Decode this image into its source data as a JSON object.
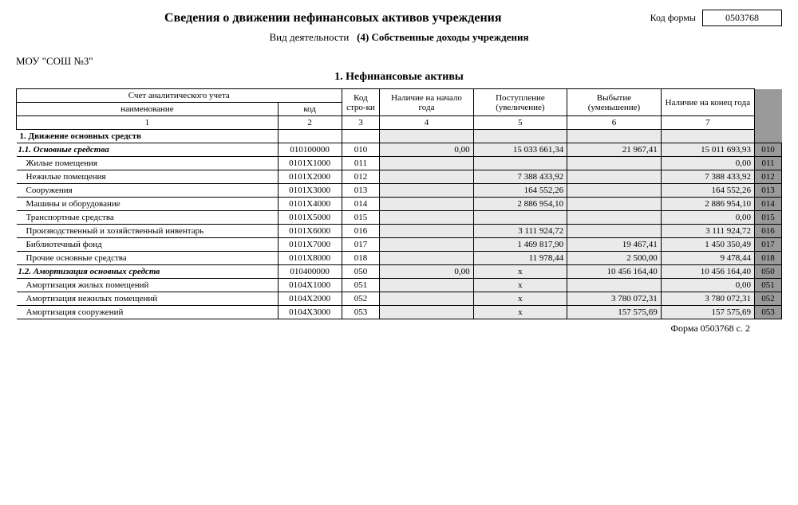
{
  "header": {
    "title": "Сведения о движении нефинансовых активов учреждения",
    "code_form_label": "Код формы",
    "code_form_value": "0503768",
    "activity_label": "Вид деятельности",
    "activity_value": "(4) Собственные доходы учреждения",
    "org": "МОУ \"СОШ №3\"",
    "section": "1. Нефинансовые активы"
  },
  "columns": {
    "account_group": "Счет аналитического учета",
    "name": "наименование",
    "code": "код",
    "line": "Код стро-ки",
    "begin": "Наличие на начало года",
    "inflow": "Поступление (увеличение)",
    "outflow": "Выбытие (уменьшение)",
    "end": "Наличие на конец года",
    "nums": [
      "1",
      "2",
      "3",
      "4",
      "5",
      "6",
      "7"
    ]
  },
  "group1": "1. Движение основных средств",
  "rows": [
    {
      "name": "1.1. Основные средства",
      "it": true,
      "code": "010100000",
      "line": "010",
      "begin": "0,00",
      "in": "15 033 661,34",
      "out": "21 967,41",
      "end": "15 011 693,93",
      "side": "010"
    },
    {
      "name": "Жилые помещения",
      "code": "0101X1000",
      "line": "011",
      "begin": "",
      "in": "",
      "out": "",
      "end": "0,00",
      "side": "011"
    },
    {
      "name": "Нежилые помещения",
      "code": "0101X2000",
      "line": "012",
      "begin": "",
      "in": "7 388 433,92",
      "out": "",
      "end": "7 388 433,92",
      "side": "012"
    },
    {
      "name": "Сооружения",
      "code": "0101X3000",
      "line": "013",
      "begin": "",
      "in": "164 552,26",
      "out": "",
      "end": "164 552,26",
      "side": "013"
    },
    {
      "name": "Машины и оборудование",
      "code": "0101X4000",
      "line": "014",
      "begin": "",
      "in": "2 886 954,10",
      "out": "",
      "end": "2 886 954,10",
      "side": "014"
    },
    {
      "name": "Транспортные средства",
      "code": "0101X5000",
      "line": "015",
      "begin": "",
      "in": "",
      "out": "",
      "end": "0,00",
      "side": "015"
    },
    {
      "name": "Производственный и хозяйственный инвентарь",
      "code": "0101X6000",
      "line": "016",
      "begin": "",
      "in": "3 111 924,72",
      "out": "",
      "end": "3 111 924,72",
      "side": "016"
    },
    {
      "name": "Библиотечный фонд",
      "code": "0101X7000",
      "line": "017",
      "begin": "",
      "in": "1 469 817,90",
      "out": "19 467,41",
      "end": "1 450 350,49",
      "side": "017"
    },
    {
      "name": "Прочие основные средства",
      "code": "0101X8000",
      "line": "018",
      "begin": "",
      "in": "11 978,44",
      "out": "2 500,00",
      "end": "9 478,44",
      "side": "018"
    },
    {
      "name": "1.2. Амортизация основных средств",
      "it": true,
      "code": "010400000",
      "line": "050",
      "begin": "0,00",
      "in": "x",
      "in_c": true,
      "out": "10 456 164,40",
      "end": "10 456 164,40",
      "side": "050"
    },
    {
      "name": "Амортизация жилых помещений",
      "code": "0104X1000",
      "line": "051",
      "begin": "",
      "in": "x",
      "in_c": true,
      "out": "",
      "end": "0,00",
      "side": "051"
    },
    {
      "name": "Амортизация нежилых помещений",
      "code": "0104X2000",
      "line": "052",
      "begin": "",
      "in": "x",
      "in_c": true,
      "out": "3 780 072,31",
      "end": "3 780 072,31",
      "side": "052"
    },
    {
      "name": "Амортизация сооружений",
      "code": "0104X3000",
      "line": "053",
      "begin": "",
      "in": "x",
      "in_c": true,
      "out": "157 575,69",
      "end": "157 575,69",
      "side": "053"
    }
  ],
  "footer": "Форма 0503768 с. 2"
}
